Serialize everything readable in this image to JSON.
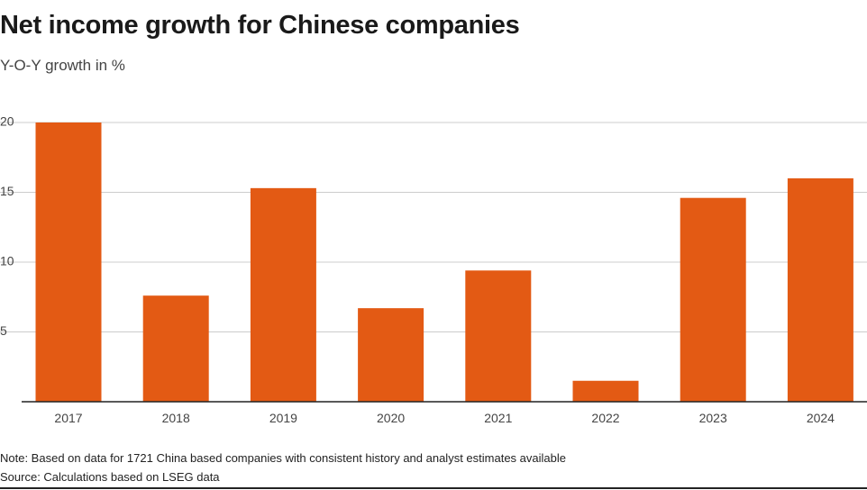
{
  "header": {
    "title": "Net income growth for Chinese companies",
    "subtitle": "Y-O-Y growth in %"
  },
  "footer": {
    "note": "Note: Based on data for 1721 China based companies with consistent history and analyst estimates available",
    "source": "Source: Calculations based on LSEG data"
  },
  "colors": {
    "bar": "#E35A14",
    "grid": "#cccccc",
    "axis": "#222222"
  },
  "chart_data": {
    "type": "bar",
    "title": "Net income growth for Chinese companies",
    "subtitle": "Y-O-Y growth in %",
    "categories": [
      "2017",
      "2018",
      "2019",
      "2020",
      "2021",
      "2022",
      "2023",
      "2024"
    ],
    "values": [
      20.0,
      7.6,
      15.3,
      6.7,
      9.4,
      1.5,
      14.6,
      16.0
    ],
    "ylim": [
      0,
      20
    ],
    "yticks": [
      5,
      10,
      15,
      20
    ],
    "grid": true,
    "xlabel": "",
    "ylabel": ""
  }
}
